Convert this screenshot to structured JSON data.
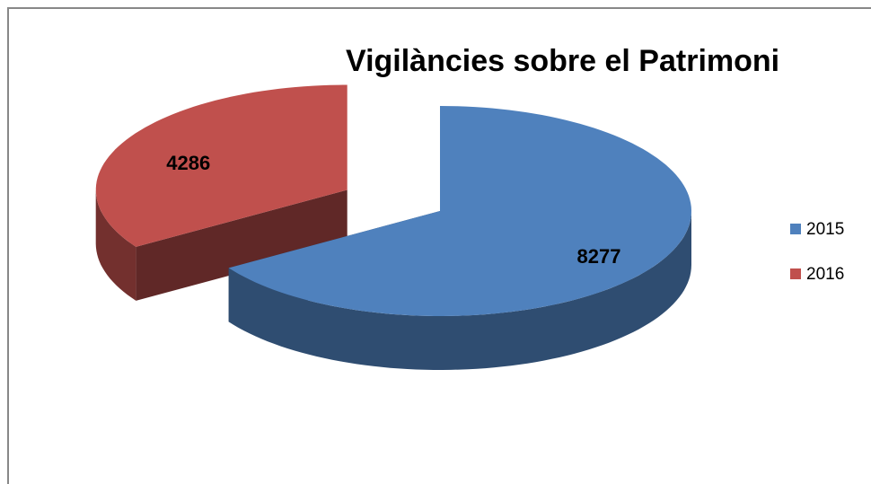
{
  "chart_data": {
    "type": "pie",
    "title": "Vigilàncies sobre el Patrimoni",
    "series": [
      {
        "name": "2015",
        "color": "#4f81bd"
      },
      {
        "name": "2016",
        "color": "#c0504d"
      }
    ],
    "values": [
      8277,
      4286
    ],
    "legend": "right",
    "three_d": true,
    "exploded": "2016"
  }
}
